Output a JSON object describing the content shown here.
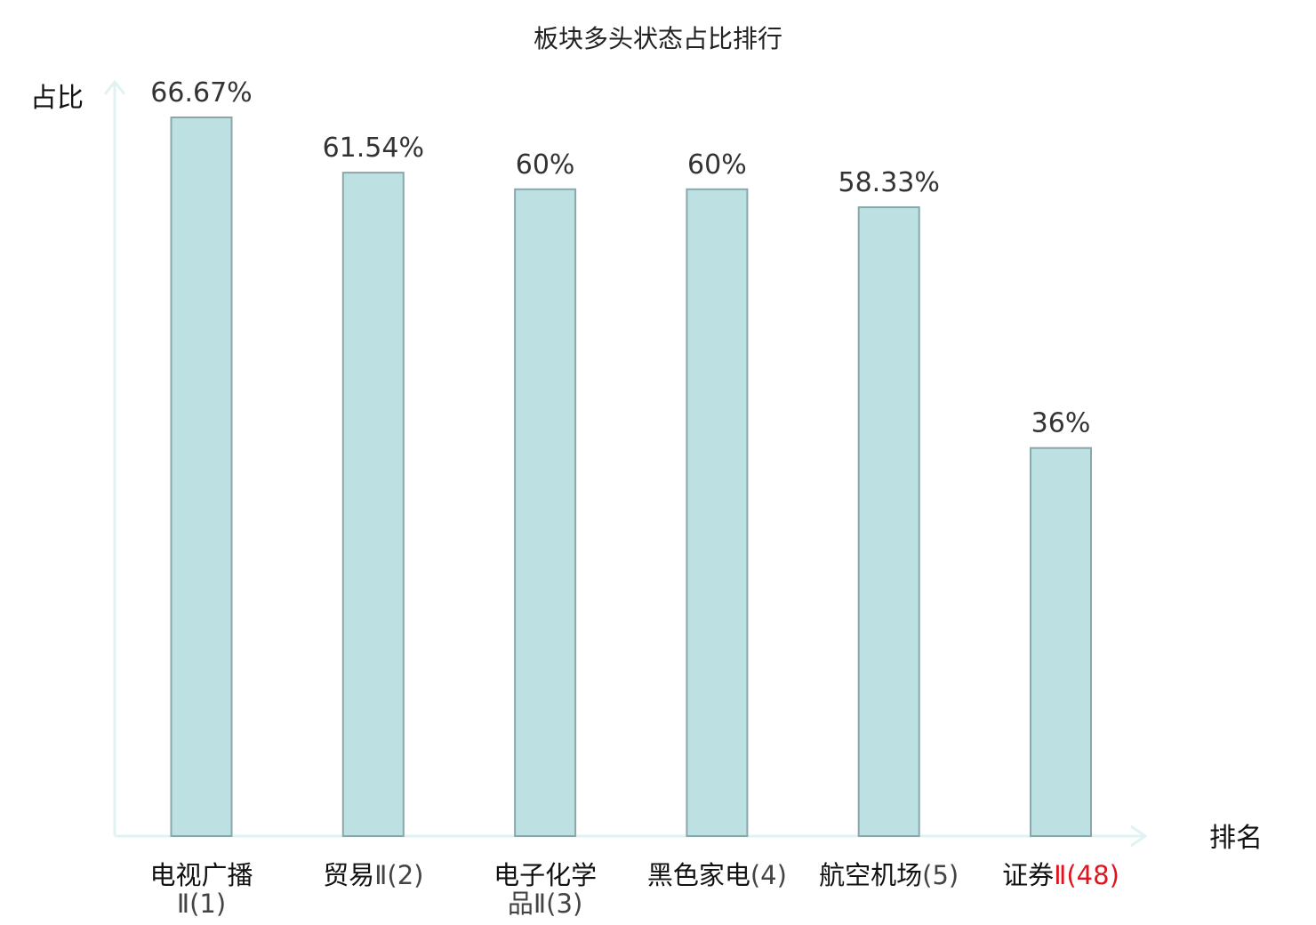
{
  "chart_data": {
    "type": "bar",
    "title": "板块多头状态占比排行",
    "xlabel": "排名",
    "ylabel": "占比",
    "ylim": [
      0,
      70
    ],
    "grid": false,
    "categories": [
      {
        "name": "电视广播",
        "rank": "Ⅱ(1)",
        "highlight": false
      },
      {
        "name": "贸易",
        "rank": "Ⅱ(2)",
        "highlight": false
      },
      {
        "name": "电子化学",
        "rank": "品Ⅱ(3)",
        "highlight": false
      },
      {
        "name": "黑色家电",
        "rank": "(4)",
        "highlight": false
      },
      {
        "name": "航空机场",
        "rank": "(5)",
        "highlight": false
      },
      {
        "name": "证券",
        "rank": "Ⅱ(48)",
        "highlight": true
      }
    ],
    "values": [
      66.67,
      61.54,
      60,
      60,
      58.33,
      36
    ],
    "value_labels": [
      "66.67%",
      "61.54%",
      "60%",
      "60%",
      "58.33%",
      "36%"
    ]
  },
  "colors": {
    "bar_fill": "#bde0e3",
    "bar_stroke": "#8aa8ab",
    "axis": "#e0f2f1",
    "highlight_text": "#e0141e"
  }
}
